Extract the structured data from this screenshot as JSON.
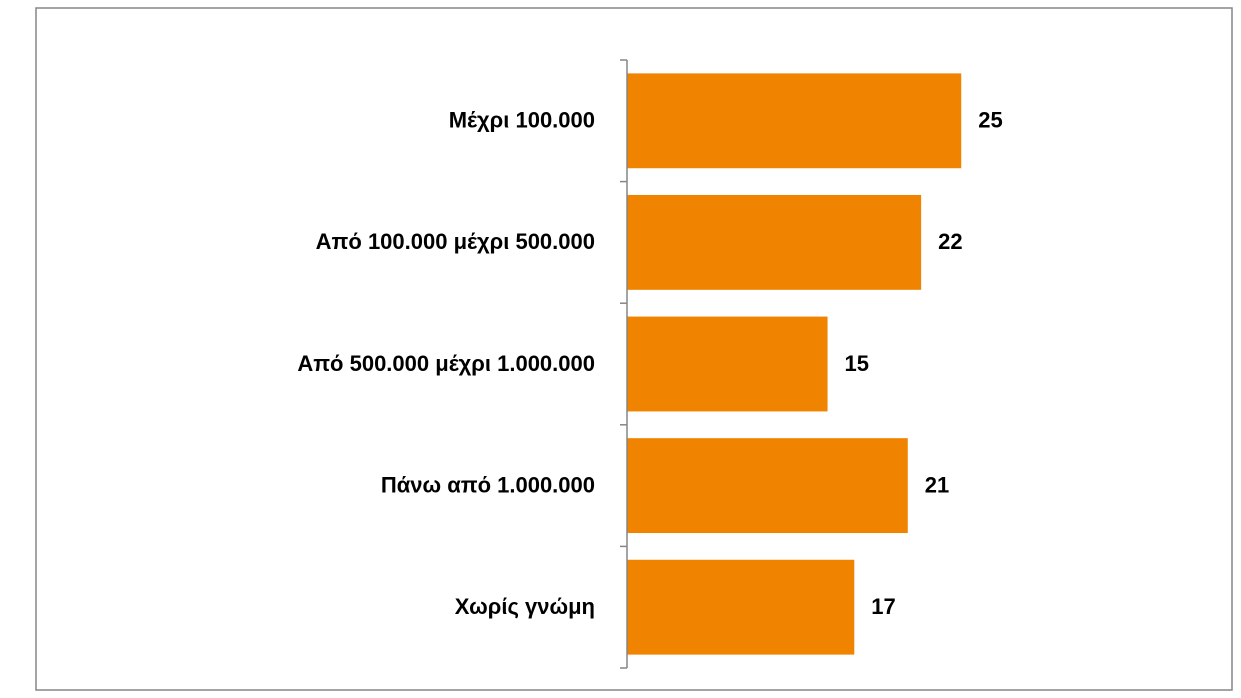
{
  "chart_data": {
    "type": "bar",
    "orientation": "horizontal",
    "categories": [
      "Μέχρι 100.000",
      "Από 100.000 μέχρι 500.000",
      "Από 500.000 μέχρι 1.000.000",
      "Πάνω από 1.000.000",
      "Χωρίς γνώμη"
    ],
    "values": [
      25,
      22,
      15,
      21,
      17
    ],
    "color": "#f08300"
  }
}
